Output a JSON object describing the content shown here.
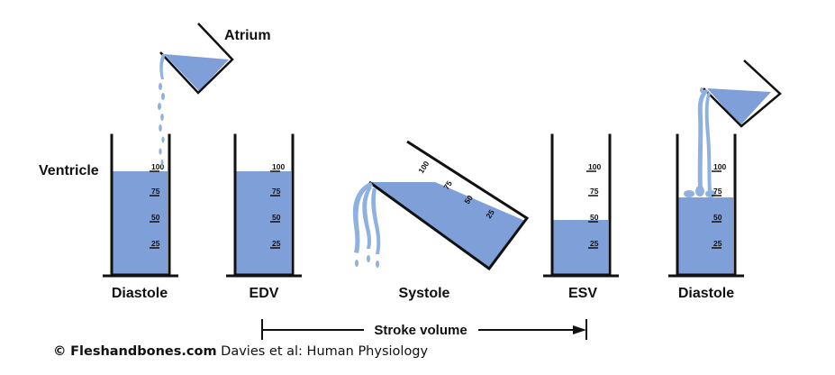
{
  "labels": {
    "atrium": "Atrium",
    "ventricle": "Ventricle",
    "stage1": "Diastole",
    "stage2": "EDV",
    "stage3": "Systole",
    "stage4": "ESV",
    "stage5": "Diastole",
    "stroke_volume": "Stroke volume"
  },
  "ticks": [
    "100",
    "75",
    "50",
    "25"
  ],
  "credit": {
    "copyright": "©",
    "site": "Fleshandbones.com",
    "source": "Davies et al: Human Physiology"
  },
  "colors": {
    "fluid": "#7f9fd8",
    "stream": "#8fb1e0",
    "outline": "#111111"
  }
}
